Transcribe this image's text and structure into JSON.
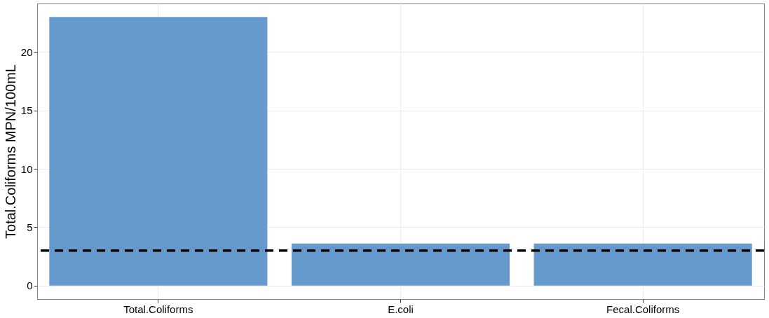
{
  "chart_data": {
    "type": "bar",
    "ylabel": "Total.Coliforms   MPN/100mL",
    "categories": [
      "Total.Coliforms",
      "E.coli",
      "Fecal.Coliforms"
    ],
    "values": [
      23,
      3.6,
      3.6
    ],
    "color": "#6699cc",
    "ylim": [
      -1.15,
      24.15
    ],
    "yticks": [
      0,
      5,
      10,
      15,
      20
    ],
    "grid": true,
    "ref_lines": [
      {
        "axis": "y",
        "value": 3,
        "color": "#000000",
        "line_style": "dashed"
      }
    ]
  }
}
